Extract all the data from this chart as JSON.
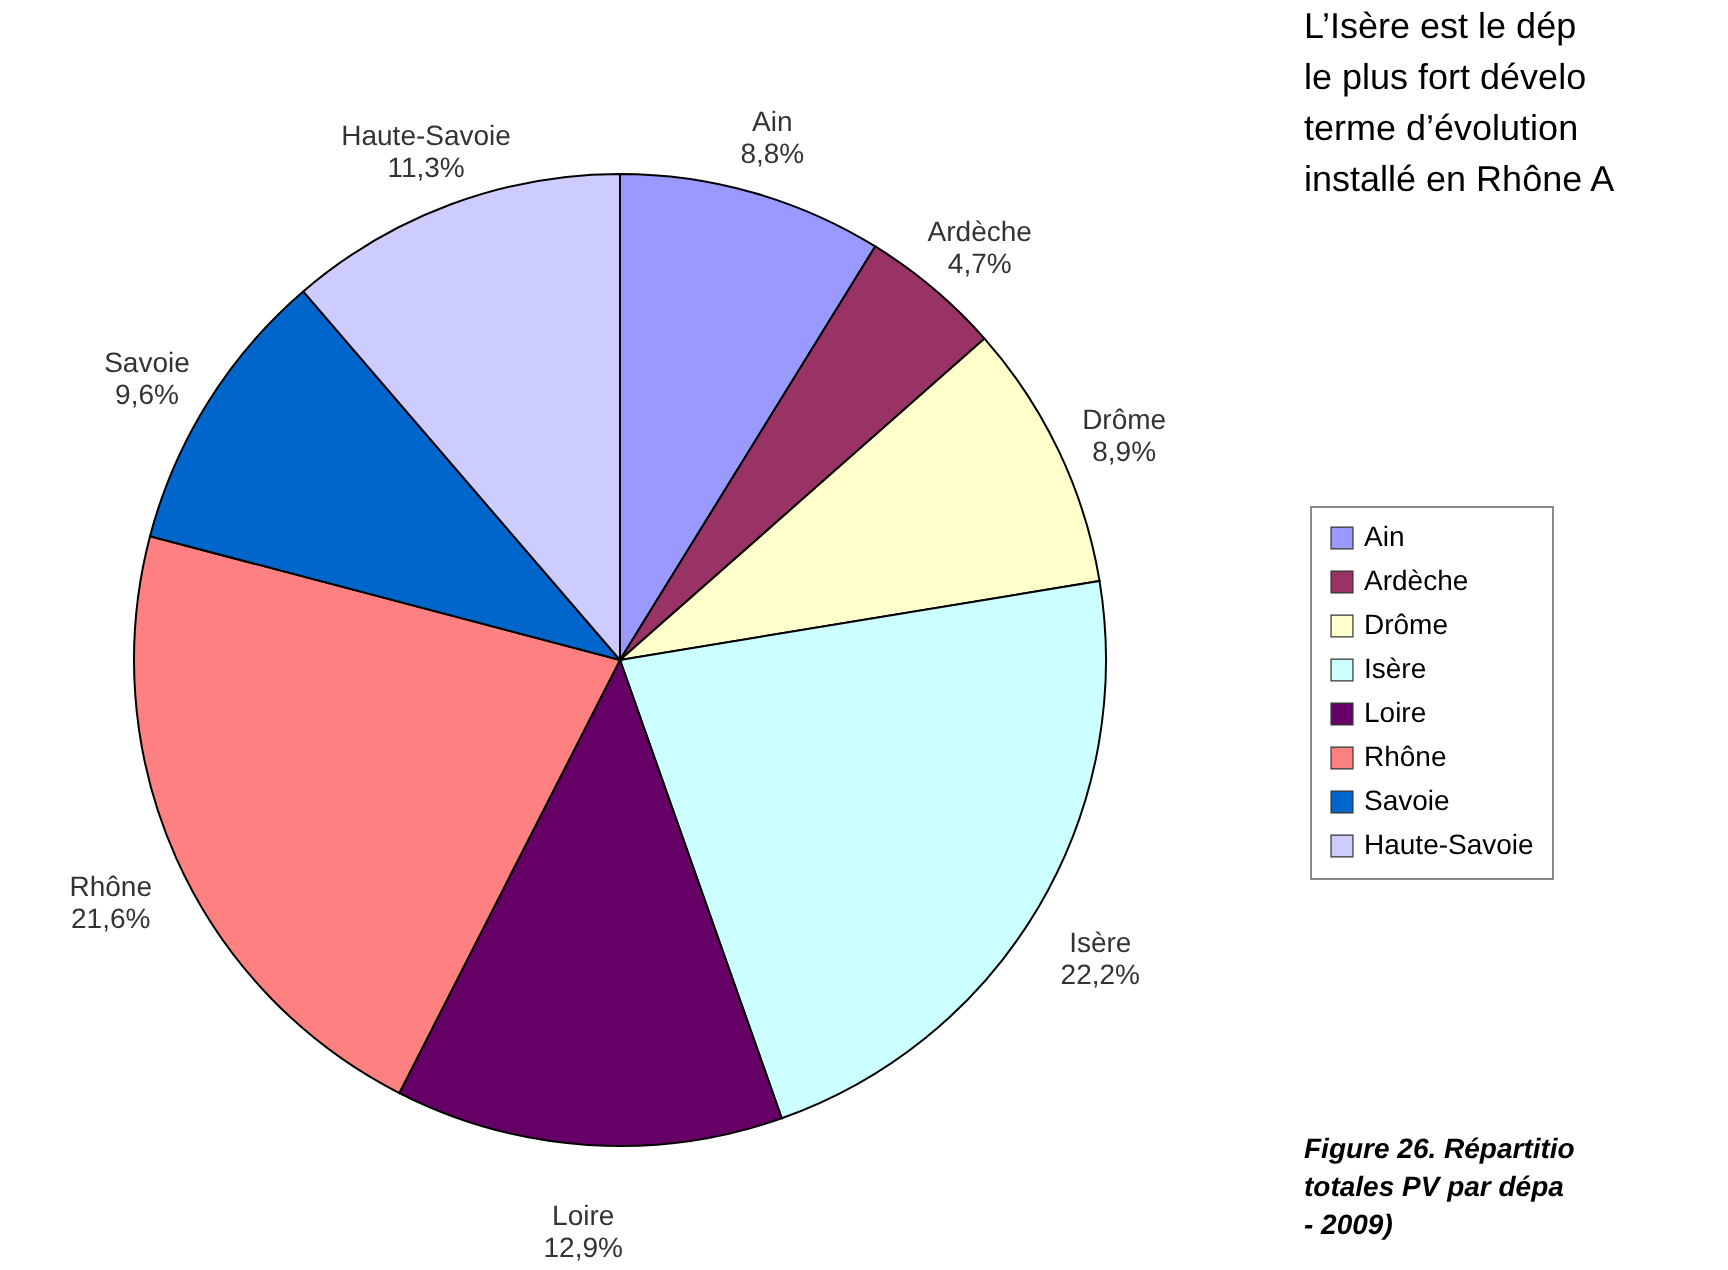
{
  "chart_data": {
    "type": "pie",
    "categories": [
      "Ain",
      "Ardèche",
      "Drôme",
      "Isère",
      "Loire",
      "Rhône",
      "Savoie",
      "Haute-Savoie"
    ],
    "values": [
      8.8,
      4.7,
      8.9,
      22.2,
      12.9,
      21.6,
      9.6,
      11.3
    ],
    "value_labels": [
      "8,8%",
      "4,7%",
      "8,9%",
      "22,2%",
      "12,9%",
      "21,6%",
      "9,6%",
      "11,3%"
    ],
    "colors": [
      "#9999ff",
      "#993366",
      "#ffffcc",
      "#ccffff",
      "#660066",
      "#ff8080",
      "#0066cc",
      "#ccccff"
    ],
    "legend": "right",
    "annotations": [
      "L’Isère est le dép",
      "le plus fort dévelo",
      "terme d’évolution",
      "installé en Rhône A",
      "Figure 26. Répartitio",
      "totales PV par dépa",
      "- 2009)"
    ]
  }
}
